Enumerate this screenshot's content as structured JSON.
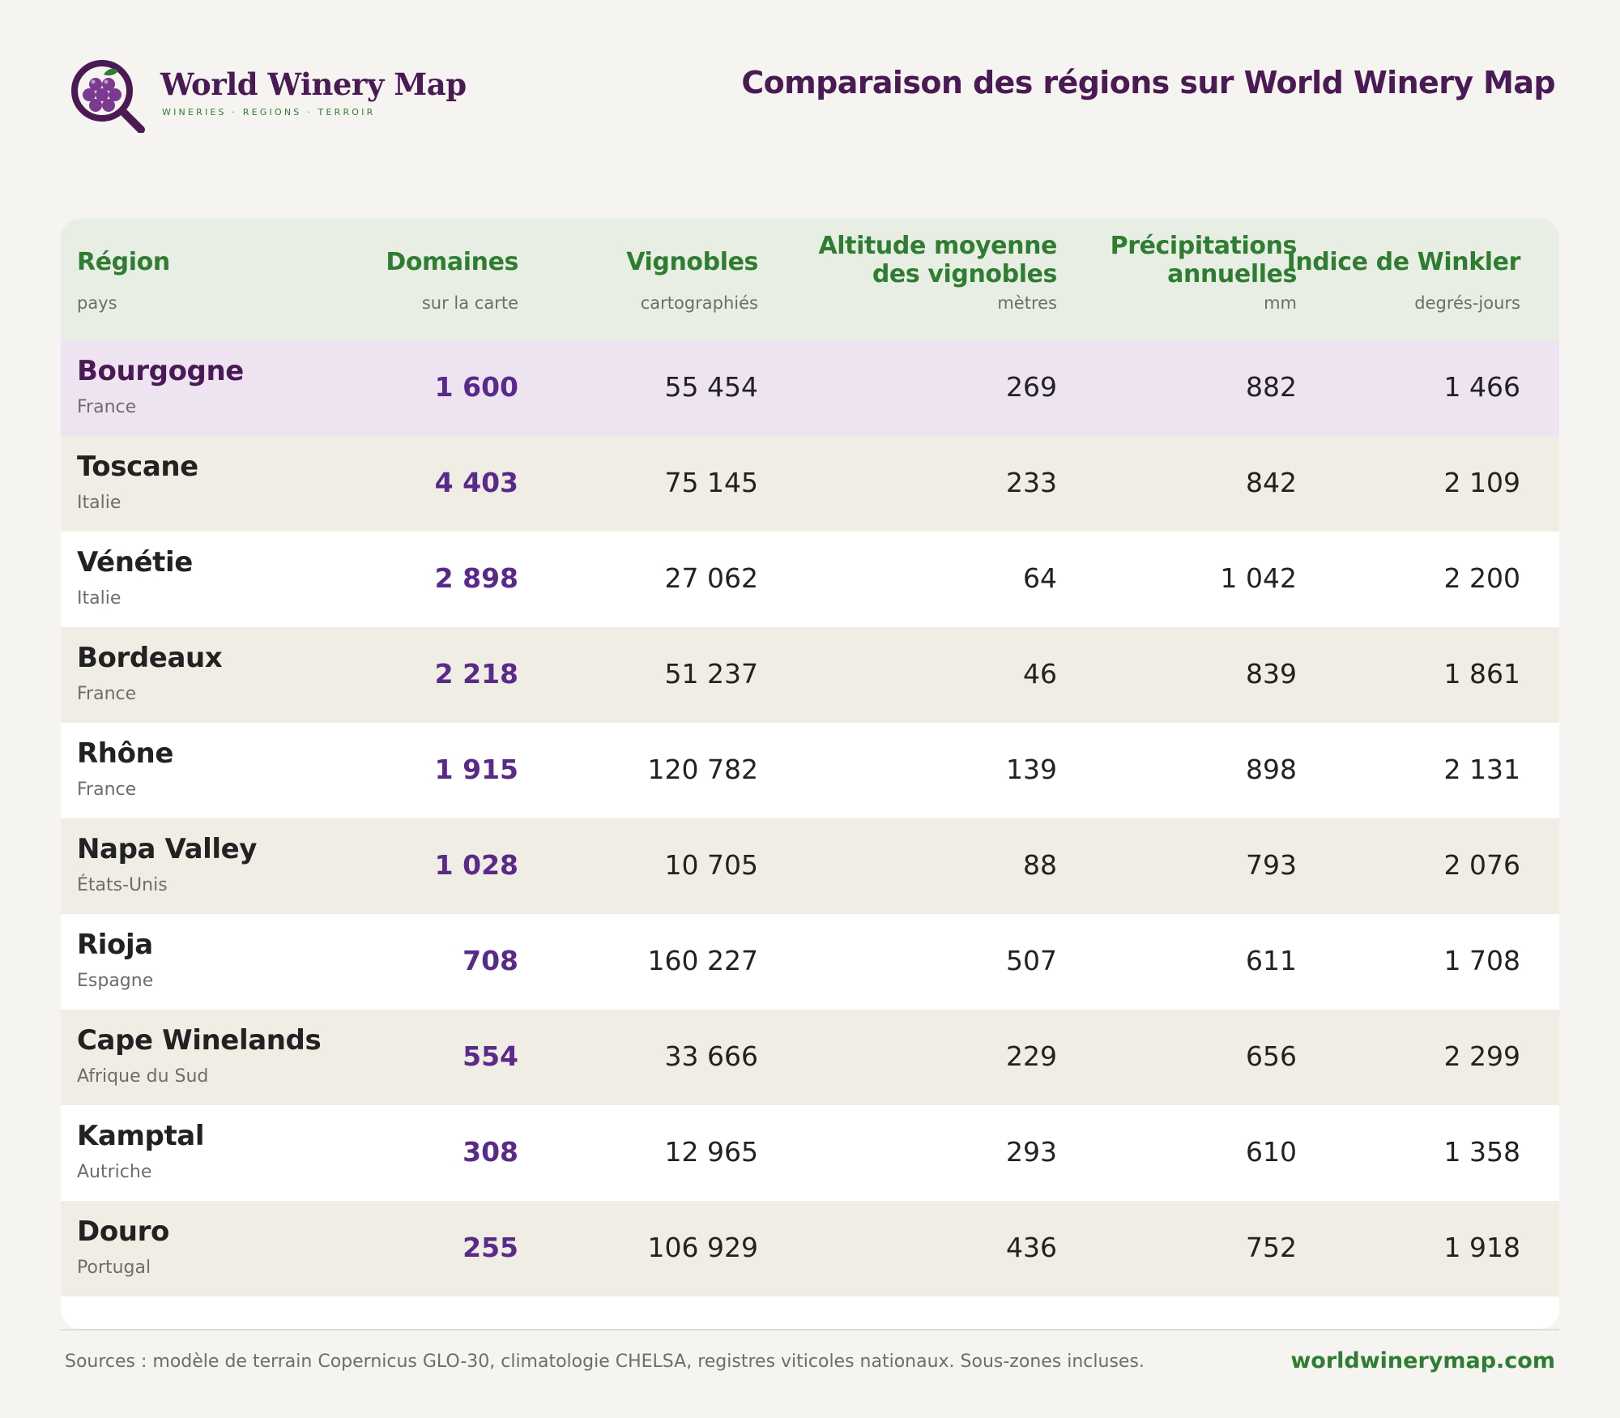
{
  "brand": {
    "name": "World Winery Map",
    "tagline": "WINERIES · REGIONS · TERROIR",
    "logo_icon": "magnifier-grapes-icon",
    "colors": {
      "plum": "#4a1a55",
      "green": "#2e7d32",
      "purple": "#5a2a8a"
    }
  },
  "title": "Comparaison des régions sur World Winery Map",
  "table": {
    "columns": [
      {
        "label": "Région",
        "sub": "pays"
      },
      {
        "label": "Domaines",
        "sub": "sur la carte"
      },
      {
        "label": "Vignobles",
        "sub": "cartographiés"
      },
      {
        "label_line1": "Altitude moyenne",
        "label_line2": "des vignobles",
        "sub": "mètres"
      },
      {
        "label_line1": "Précipitations",
        "label_line2": "annuelles",
        "sub": "mm"
      },
      {
        "label": "Indice de Winkler",
        "sub": "degrés-jours"
      }
    ],
    "rows": [
      {
        "region": "Bourgogne",
        "country": "France",
        "domaines": "1 600",
        "vignobles": "55 454",
        "altitude": "269",
        "precip": "882",
        "winkler": "1 466",
        "highlighted": true
      },
      {
        "region": "Toscane",
        "country": "Italie",
        "domaines": "4 403",
        "vignobles": "75 145",
        "altitude": "233",
        "precip": "842",
        "winkler": "2 109"
      },
      {
        "region": "Vénétie",
        "country": "Italie",
        "domaines": "2 898",
        "vignobles": "27 062",
        "altitude": "64",
        "precip": "1 042",
        "winkler": "2 200"
      },
      {
        "region": "Bordeaux",
        "country": "France",
        "domaines": "2 218",
        "vignobles": "51 237",
        "altitude": "46",
        "precip": "839",
        "winkler": "1 861"
      },
      {
        "region": "Rhône",
        "country": "France",
        "domaines": "1 915",
        "vignobles": "120 782",
        "altitude": "139",
        "precip": "898",
        "winkler": "2 131"
      },
      {
        "region": "Napa Valley",
        "country": "États-Unis",
        "domaines": "1 028",
        "vignobles": "10 705",
        "altitude": "88",
        "precip": "793",
        "winkler": "2 076"
      },
      {
        "region": "Rioja",
        "country": "Espagne",
        "domaines": "708",
        "vignobles": "160 227",
        "altitude": "507",
        "precip": "611",
        "winkler": "1 708"
      },
      {
        "region": "Cape Winelands",
        "country": "Afrique du Sud",
        "domaines": "554",
        "vignobles": "33 666",
        "altitude": "229",
        "precip": "656",
        "winkler": "2 299"
      },
      {
        "region": "Kamptal",
        "country": "Autriche",
        "domaines": "308",
        "vignobles": "12 965",
        "altitude": "293",
        "precip": "610",
        "winkler": "1 358"
      },
      {
        "region": "Douro",
        "country": "Portugal",
        "domaines": "255",
        "vignobles": "106 929",
        "altitude": "436",
        "precip": "752",
        "winkler": "1 918"
      }
    ]
  },
  "footer": {
    "sources": "Sources : modèle de terrain Copernicus GLO-30, climatologie CHELSA, registres viticoles nationaux. Sous-zones incluses.",
    "site": "worldwinerymap.com"
  }
}
